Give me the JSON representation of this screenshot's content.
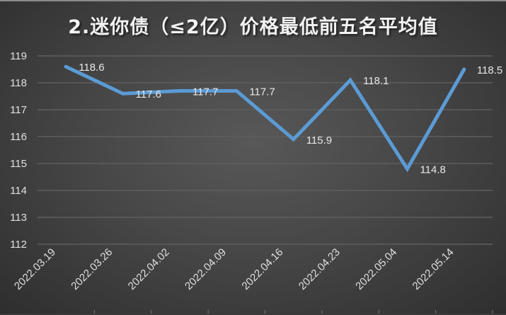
{
  "chart_data": {
    "type": "line",
    "title": "2.迷你债（≤2亿）价格最低前五名平均值",
    "categories": [
      "2022.03.19",
      "2022.03.26",
      "2022.04.02",
      "2022.04.09",
      "2022.04.16",
      "2022.04.23",
      "2022.05.04",
      "2022.05.14"
    ],
    "series": [
      {
        "values": [
          118.6,
          117.6,
          117.7,
          117.7,
          115.9,
          118.1,
          114.8,
          118.5
        ]
      }
    ],
    "data_labels": [
      "118.6",
      "117.6",
      "117.7",
      "117.7",
      "115.9",
      "118.1",
      "114.8",
      "118.5"
    ],
    "ylim": [
      112,
      119
    ],
    "yticks": [
      "112",
      "113",
      "114",
      "115",
      "116",
      "117",
      "118",
      "119"
    ],
    "grid": true,
    "legend": "none",
    "line_color": "#5b9bd5"
  }
}
